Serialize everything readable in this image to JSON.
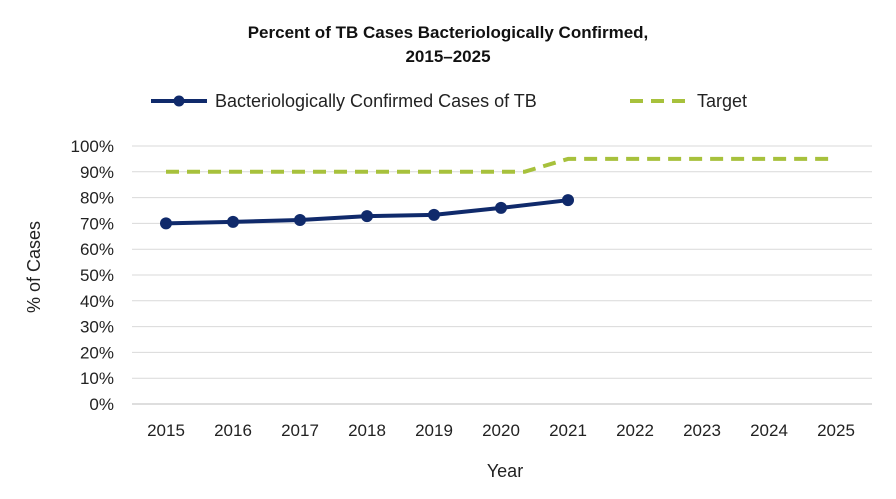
{
  "chart_data": {
    "type": "line",
    "title_line1": "Percent of TB Cases Bacteriologically Confirmed,",
    "title_line2": "2015–2025",
    "xlabel": "Year",
    "ylabel": "% of Cases",
    "x": [
      "2015",
      "2016",
      "2017",
      "2018",
      "2019",
      "2020",
      "2021",
      "2022",
      "2023",
      "2024",
      "2025"
    ],
    "ylim": [
      0,
      100
    ],
    "y_ticks": [
      "0%",
      "10%",
      "20%",
      "30%",
      "40%",
      "50%",
      "60%",
      "70%",
      "80%",
      "90%",
      "100%"
    ],
    "grid": true,
    "legend_position": "top",
    "series": [
      {
        "name": "Bacteriologically Confirmed Cases of TB",
        "values": [
          70,
          70.6,
          71.3,
          72.8,
          73.3,
          76,
          79,
          null,
          null,
          null,
          null
        ],
        "color": "#102a6b",
        "style": "solid-markers"
      },
      {
        "name": "Target",
        "values": [
          90,
          90,
          90,
          90,
          90,
          90,
          95,
          95,
          95,
          95,
          95
        ],
        "color": "#a7c13c",
        "style": "dashed"
      }
    ]
  }
}
